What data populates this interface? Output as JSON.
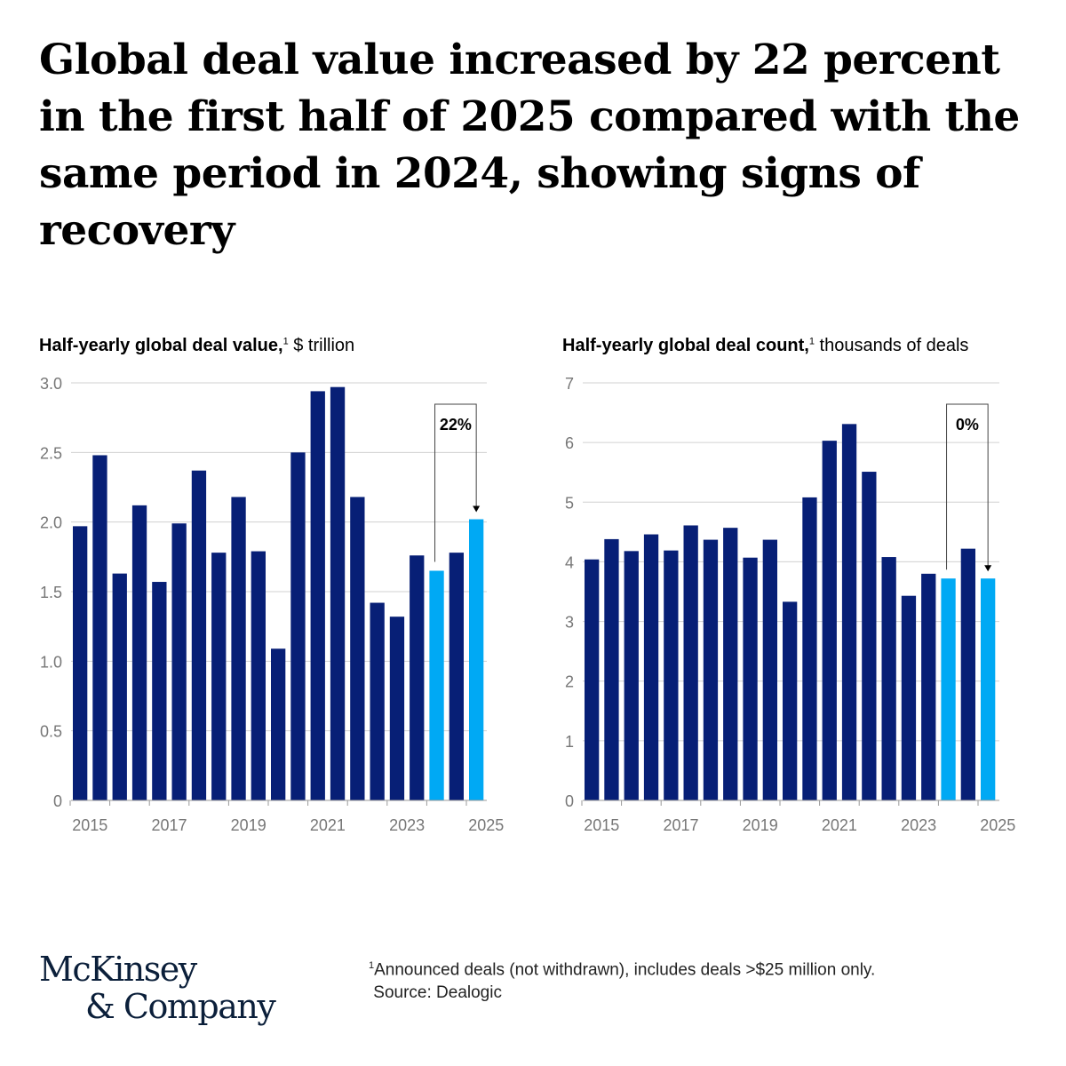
{
  "title": "Global deal value increased by 22 percent in the first half of 2025 compared with the same period in 2024, showing signs of recovery",
  "colors": {
    "dark": "#071f76",
    "light": "#00a9f4",
    "grid": "#d0d0d0",
    "axis_text": "#777777"
  },
  "chart_data": [
    {
      "type": "bar",
      "title_bold": "Half-yearly global deal value,",
      "title_sup": "1",
      "title_rest": " $ trillion",
      "periods": [
        "2015 H1",
        "2015 H2",
        "2016 H1",
        "2016 H2",
        "2017 H1",
        "2017 H2",
        "2018 H1",
        "2018 H2",
        "2019 H1",
        "2019 H2",
        "2020 H1",
        "2020 H2",
        "2021 H1",
        "2021 H2",
        "2022 H1",
        "2022 H2",
        "2023 H1",
        "2023 H2",
        "2024 H1",
        "2024 H2",
        "2025 H1"
      ],
      "values": [
        1.97,
        2.48,
        1.63,
        2.12,
        1.57,
        1.99,
        2.37,
        1.78,
        2.18,
        1.79,
        1.09,
        2.5,
        2.94,
        2.97,
        2.18,
        1.42,
        1.32,
        1.76,
        1.65,
        1.78,
        2.02
      ],
      "highlight": [
        18,
        20
      ],
      "yticks": [
        "0",
        "0.5",
        "1.0",
        "1.5",
        "2.0",
        "2.5",
        "3.0"
      ],
      "ytick_values": [
        0,
        0.5,
        1,
        1.5,
        2,
        2.5,
        3
      ],
      "ylim": [
        0,
        3
      ],
      "xtick_labels": [
        "2015",
        "2017",
        "2019",
        "2021",
        "2023",
        "2025"
      ],
      "annotation": "22%"
    },
    {
      "type": "bar",
      "title_bold": "Half-yearly global deal count,",
      "title_sup": "1",
      "title_rest": " thousands of deals",
      "periods": [
        "2015 H1",
        "2015 H2",
        "2016 H1",
        "2016 H2",
        "2017 H1",
        "2017 H2",
        "2018 H1",
        "2018 H2",
        "2019 H1",
        "2019 H2",
        "2020 H1",
        "2020 H2",
        "2021 H1",
        "2021 H2",
        "2022 H1",
        "2022 H2",
        "2023 H1",
        "2023 H2",
        "2024 H1",
        "2024 H2",
        "2025 H1"
      ],
      "values": [
        4.04,
        4.38,
        4.18,
        4.46,
        4.19,
        4.61,
        4.37,
        4.57,
        4.07,
        4.37,
        3.33,
        5.08,
        6.03,
        6.31,
        5.51,
        4.08,
        3.43,
        3.8,
        3.72,
        4.22,
        3.72
      ],
      "highlight": [
        18,
        20
      ],
      "yticks": [
        "0",
        "1",
        "2",
        "3",
        "4",
        "5",
        "6",
        "7"
      ],
      "ytick_values": [
        0,
        1,
        2,
        3,
        4,
        5,
        6,
        7
      ],
      "ylim": [
        0,
        7
      ],
      "xtick_labels": [
        "2015",
        "2017",
        "2019",
        "2021",
        "2023",
        "2025"
      ],
      "annotation": "0%"
    }
  ],
  "footnote": {
    "sup": "1",
    "text": "Announced deals (not withdrawn), includes deals >$25 million only.",
    "source": "Source: Dealogic"
  },
  "logo": {
    "line1": "McKinsey",
    "line2": "& Company"
  }
}
